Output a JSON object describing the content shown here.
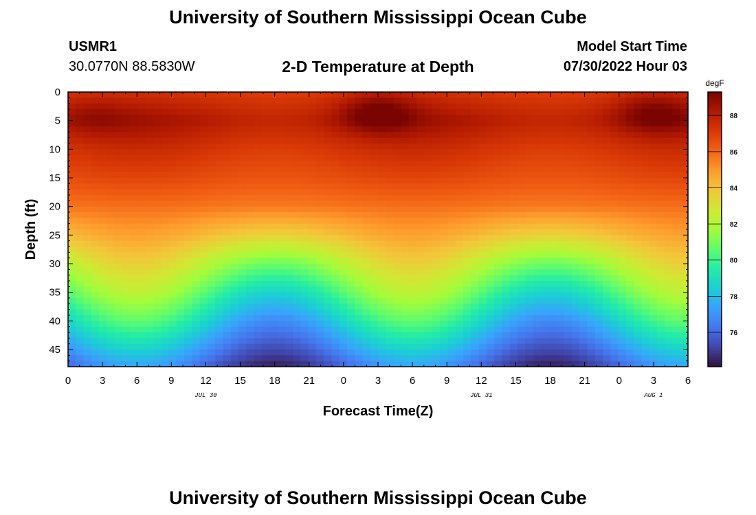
{
  "header": {
    "title_top": "University of Southern Mississippi Ocean Cube",
    "station_id": "USMR1",
    "coordinates": "30.0770N  88.5830W",
    "chart_subtitle": "2-D Temperature at Depth",
    "model_label": "Model Start Time",
    "model_start": "07/30/2022 Hour 03",
    "title_bottom": "University of Southern Mississippi Ocean Cube"
  },
  "chart_data": {
    "type": "heatmap",
    "title": "2-D Temperature at Depth",
    "xlabel": "Forecast Time(Z)",
    "ylabel": "Depth (ft)",
    "x_ticks": [
      "0",
      "3",
      "6",
      "9",
      "12",
      "15",
      "18",
      "21",
      "0",
      "3",
      "6",
      "9",
      "12",
      "15",
      "18",
      "21",
      "0",
      "3",
      "6"
    ],
    "x_range_hours": [
      0,
      54
    ],
    "date_labels": [
      {
        "text": "JUL 30",
        "hour": 12
      },
      {
        "text": "JUL 31",
        "hour": 36
      },
      {
        "text": "AUG 1",
        "hour": 51
      }
    ],
    "y_ticks": [
      0,
      5,
      10,
      15,
      20,
      25,
      30,
      35,
      40,
      45
    ],
    "y_range": [
      0,
      48
    ],
    "colorbar": {
      "unit": "degF",
      "min": 74.1,
      "max": 89.3,
      "ticks": [
        76,
        78,
        80,
        82,
        84,
        86,
        88
      ]
    },
    "color_stops": [
      "#30123b",
      "#4145ab",
      "#4675ed",
      "#39a2fc",
      "#1bcfd4",
      "#24eca6",
      "#61fc6c",
      "#a4fc3b",
      "#d1e834",
      "#f3c63a",
      "#fe9b2d",
      "#f36315",
      "#d93806",
      "#b11901",
      "#7a0402"
    ],
    "depth_profile": {
      "depths": [
        0,
        5,
        10,
        15,
        20,
        25,
        30,
        35,
        40,
        45,
        48
      ],
      "cold_phase": [
        87.0,
        87.8,
        87.0,
        86.4,
        85.6,
        83.5,
        80.8,
        78.6,
        76.8,
        75.3,
        74.4
      ],
      "warm_phase": [
        87.4,
        88.6,
        87.6,
        86.8,
        85.8,
        84.8,
        83.6,
        82.3,
        80.6,
        78.6,
        77.4
      ]
    },
    "mixing_peaks_hours": [
      6,
      30
    ],
    "surface_hotspots": [
      {
        "hour": 2,
        "depth": 4,
        "amp": 0.6
      },
      {
        "hour": 27,
        "depth": 3.5,
        "amp": 1.6
      },
      {
        "hour": 51,
        "depth": 3.5,
        "amp": 1.3
      }
    ]
  }
}
